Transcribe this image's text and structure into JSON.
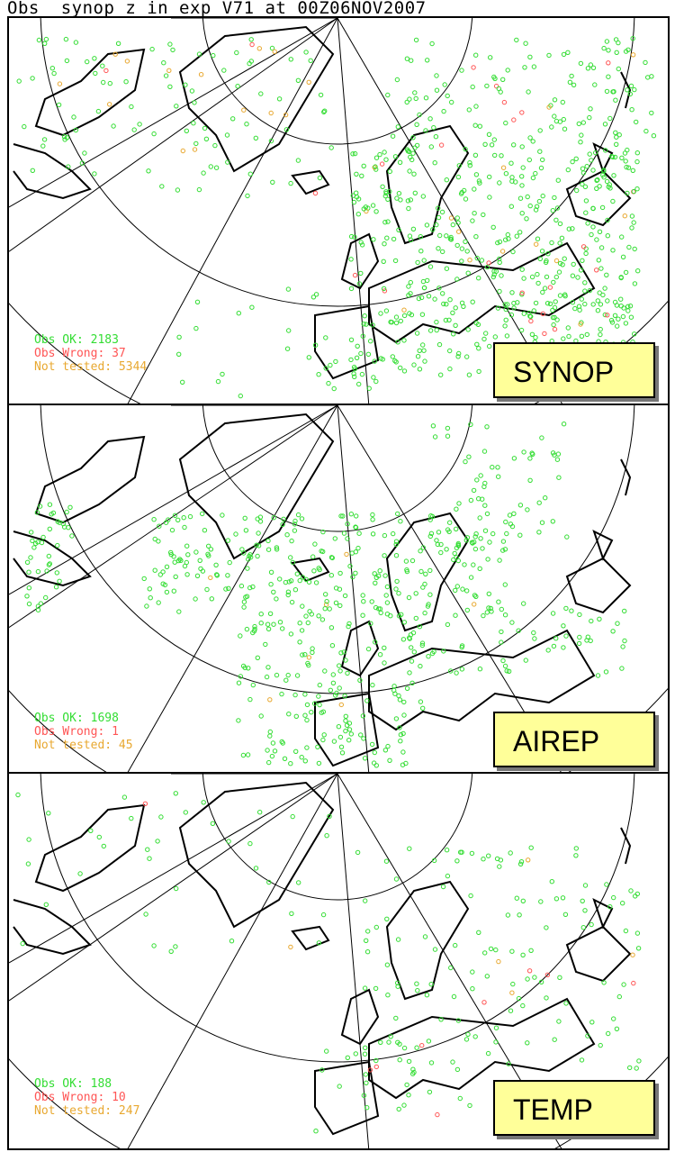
{
  "title": "Obs  synop_z in exp V71 at 00Z06NOV2007",
  "colors": {
    "ok": "#33dd33",
    "wrong": "#ff5555",
    "not_tested": "#e8a830",
    "label_bg": "#ffff99"
  },
  "panels": [
    {
      "label": "SYNOP",
      "ok": "Obs OK: 2183",
      "wrong": "Obs Wrong: 37",
      "not_tested": "Not tested: 5344"
    },
    {
      "label": "AIREP",
      "ok": "Obs OK: 1698",
      "wrong": "Obs Wrong: 1",
      "not_tested": "Not tested: 45"
    },
    {
      "label": "TEMP",
      "ok": "Obs OK: 188",
      "wrong": "Obs Wrong: 10",
      "not_tested": "Not tested: 247"
    }
  ]
}
